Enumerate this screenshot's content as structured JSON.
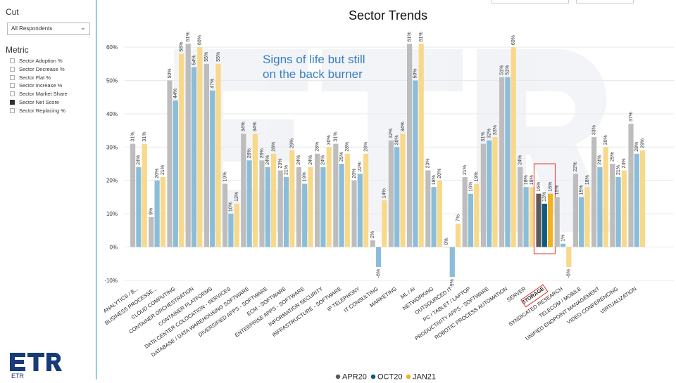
{
  "sidebar": {
    "cut_title": "Cut",
    "cut_value": "All Respondents",
    "metric_title": "Metric",
    "metrics": [
      {
        "label": "Sector Adoption %",
        "checked": false
      },
      {
        "label": "Sector Decrease %",
        "checked": false
      },
      {
        "label": "Sector Flat %",
        "checked": false
      },
      {
        "label": "Sector Increase %",
        "checked": false
      },
      {
        "label": "Sector Market Share",
        "checked": false
      },
      {
        "label": "Sector Net Score",
        "checked": true
      },
      {
        "label": "Sector Replacing %",
        "checked": false
      }
    ]
  },
  "logo_text": "ETR",
  "annotation": {
    "line1": "Signs of life but still",
    "line2": "on the back burner"
  },
  "colors": {
    "apr20": "#bdbdbd",
    "oct20": "#8bbdd9",
    "jan21": "#f8d98a",
    "apr20_hl": "#5a5a5a",
    "oct20_hl": "#0e5a80",
    "jan21_hl": "#f2b21b",
    "highlight_box": "#e2332f",
    "axis_line": "#1f8fc9"
  },
  "chart_data": {
    "type": "bar",
    "title": "Sector Trends",
    "ylim": [
      -12,
      63
    ],
    "yticks": [
      -10,
      0,
      10,
      20,
      30,
      40,
      50,
      60
    ],
    "ytick_labels": [
      "-10%",
      "0%",
      "10%",
      "20%",
      "30%",
      "40%",
      "50%",
      "60%"
    ],
    "grid": true,
    "legend_position": "bottom-center",
    "highlight_category": "STORAGE",
    "categories": [
      "ANALYTICS / B...",
      "BUSINESS PROCESSE...",
      "CLOUD COMPUTING",
      "CONTAINER ORCHESTRATION",
      "CONTAINER PLATFORMS",
      "DATA CENTER COLOCATION - SERVICES",
      "DATABASE / DATA WAREHOUSING SOFTWARE",
      "DIVERSIFIED APPS - SOFTWARE",
      "ECM - SOFTWARE",
      "ENTERPRISE APPS - SOFTWARE",
      "INFORMATION SECURITY",
      "INFRASTRUCTURE - SOFTWARE",
      "IP TELEPHONY",
      "IT CONSULTING",
      "MARKETING",
      "ML / AI",
      "NETWORKING",
      "OUTSOURCED IT",
      "PC / TABLET / LAPTOP",
      "PRODUCTIVITY APPS - SOFTWARE",
      "ROBOTIC PROCESS AUTOMATION",
      "SERVER",
      "STORAGE",
      "SYNDICATED RESEARCH",
      "TELECOM / MOBILE",
      "UNIFIED ENDPOINT MANAGEMENT",
      "VIDEO CONFERENCING",
      "VIRTUALIZATION"
    ],
    "series": [
      {
        "name": "APR20",
        "values": [
          31,
          9,
          50,
          61,
          55,
          19,
          34,
          26,
          23,
          24,
          28,
          31,
          20,
          2,
          32,
          61,
          23,
          0,
          21,
          31,
          51,
          24,
          16,
          15,
          22,
          33,
          25,
          37
        ]
      },
      {
        "name": "OCT20",
        "values": [
          24,
          20,
          44,
          54,
          47,
          10,
          26,
          24,
          21,
          19,
          24,
          25,
          22,
          -6,
          30,
          50,
          18,
          -9,
          16,
          32,
          51,
          18,
          13,
          1,
          15,
          24,
          21,
          28
        ]
      },
      {
        "name": "JAN21",
        "values": [
          31,
          21,
          58,
          60,
          55,
          13,
          34,
          28,
          29,
          24,
          30,
          28,
          28,
          14,
          34,
          61,
          20,
          7,
          19,
          33,
          60,
          18,
          16,
          -6,
          18,
          30,
          23,
          29
        ]
      }
    ]
  }
}
